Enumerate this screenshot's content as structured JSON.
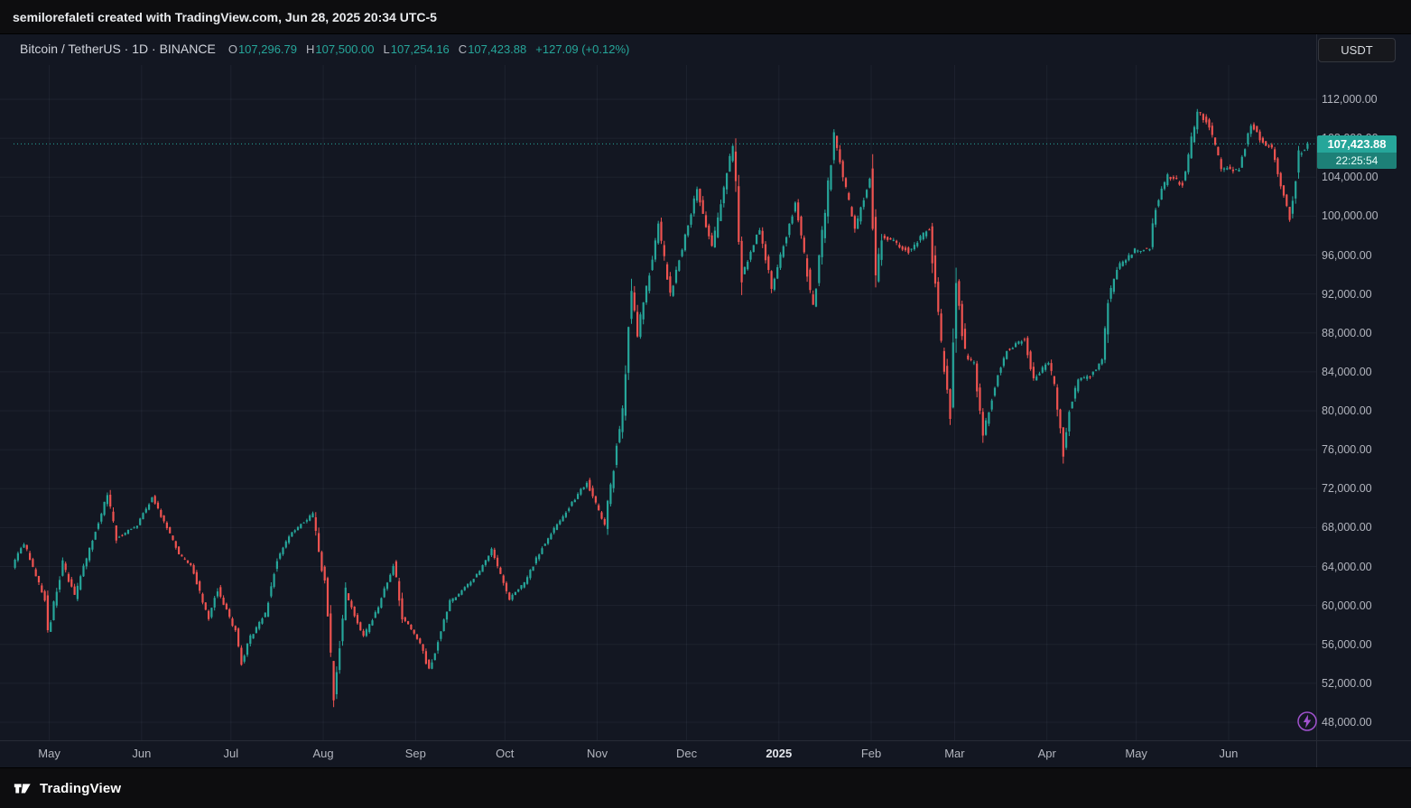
{
  "attribution": {
    "text": "semilorefaleti created with TradingView.com, Jun 28, 2025 20:34 UTC-5"
  },
  "symbol_bar": {
    "title": "Bitcoin / TetherUS · 1D · BINANCE",
    "ohlc": {
      "o_label": "O",
      "o": "107,296.79",
      "h_label": "H",
      "h": "107,500.00",
      "l_label": "L",
      "l": "107,254.16",
      "c_label": "C",
      "c": "107,423.88",
      "change": "+127.09 (+0.12%)"
    },
    "currency_button": "USDT"
  },
  "price_label": {
    "price": "107,423.88",
    "countdown": "22:25:54"
  },
  "footer": {
    "brand": "TradingView"
  },
  "colors": {
    "up": "#26a69a",
    "down": "#ef5350",
    "price_label_bg": "#26a69a",
    "pane_bg": "#131722"
  },
  "chart_data": {
    "type": "candlestick",
    "title": "Bitcoin / TetherUS, 1D, BINANCE",
    "ylabel": "Price (USDT)",
    "grid": true,
    "legend": "none",
    "up_color": "#26a69a",
    "down_color": "#ef5350",
    "x_range": [
      "2024-04-19",
      "2025-06-28"
    ],
    "ylim": [
      46000,
      114000
    ],
    "y_ticks": [
      {
        "value": 48000,
        "label": "48,000.00"
      },
      {
        "value": 52000,
        "label": "52,000.00"
      },
      {
        "value": 56000,
        "label": "56,000.00"
      },
      {
        "value": 60000,
        "label": "60,000.00"
      },
      {
        "value": 64000,
        "label": "64,000.00"
      },
      {
        "value": 68000,
        "label": "68,000.00"
      },
      {
        "value": 72000,
        "label": "72,000.00"
      },
      {
        "value": 76000,
        "label": "76,000.00"
      },
      {
        "value": 80000,
        "label": "80,000.00"
      },
      {
        "value": 84000,
        "label": "84,000.00"
      },
      {
        "value": 88000,
        "label": "88,000.00"
      },
      {
        "value": 92000,
        "label": "92,000.00"
      },
      {
        "value": 96000,
        "label": "96,000.00"
      },
      {
        "value": 100000,
        "label": "100,000.00"
      },
      {
        "value": 104000,
        "label": "104,000.00"
      },
      {
        "value": 108000,
        "label": "108,000.00"
      },
      {
        "value": 112000,
        "label": "112,000.00"
      }
    ],
    "x_ticks": [
      {
        "label": "May",
        "date": "2024-05-01"
      },
      {
        "label": "Jun",
        "date": "2024-06-01"
      },
      {
        "label": "Jul",
        "date": "2024-07-01"
      },
      {
        "label": "Aug",
        "date": "2024-08-01"
      },
      {
        "label": "Sep",
        "date": "2024-09-01"
      },
      {
        "label": "Oct",
        "date": "2024-10-01"
      },
      {
        "label": "Nov",
        "date": "2024-11-01"
      },
      {
        "label": "Dec",
        "date": "2024-12-01"
      },
      {
        "label": "2025",
        "date": "2025-01-01",
        "year": true
      },
      {
        "label": "Feb",
        "date": "2025-02-01"
      },
      {
        "label": "Mar",
        "date": "2025-03-01"
      },
      {
        "label": "Apr",
        "date": "2025-04-01"
      },
      {
        "label": "May",
        "date": "2025-05-01"
      },
      {
        "label": "Jun",
        "date": "2025-06-01"
      }
    ],
    "last_candle": {
      "open": 107296.79,
      "high": 107500.0,
      "low": 107254.16,
      "close": 107423.88,
      "change": 127.09,
      "change_pct": 0.12
    },
    "price_path": [
      [
        "2024-04-19",
        64000
      ],
      [
        "2024-04-23",
        66400
      ],
      [
        "2024-04-30",
        60600
      ],
      [
        "2024-05-01",
        57200
      ],
      [
        "2024-05-06",
        64300
      ],
      [
        "2024-05-10",
        60900
      ],
      [
        "2024-05-15",
        65800
      ],
      [
        "2024-05-21",
        71400
      ],
      [
        "2024-05-24",
        66900
      ],
      [
        "2024-05-31",
        68300
      ],
      [
        "2024-06-05",
        71100
      ],
      [
        "2024-06-11",
        67300
      ],
      [
        "2024-06-14",
        65200
      ],
      [
        "2024-06-18",
        64100
      ],
      [
        "2024-06-24",
        58700
      ],
      [
        "2024-06-27",
        61700
      ],
      [
        "2024-07-03",
        57300
      ],
      [
        "2024-07-05",
        54200
      ],
      [
        "2024-07-08",
        56700
      ],
      [
        "2024-07-13",
        59200
      ],
      [
        "2024-07-17",
        64800
      ],
      [
        "2024-07-22",
        67500
      ],
      [
        "2024-07-29",
        69400
      ],
      [
        "2024-08-02",
        62100
      ],
      [
        "2024-08-05",
        50500
      ],
      [
        "2024-08-09",
        61200
      ],
      [
        "2024-08-15",
        56800
      ],
      [
        "2024-08-20",
        59800
      ],
      [
        "2024-08-25",
        64200
      ],
      [
        "2024-08-28",
        58900
      ],
      [
        "2024-09-03",
        56100
      ],
      [
        "2024-09-06",
        53300
      ],
      [
        "2024-09-13",
        60400
      ],
      [
        "2024-09-18",
        61800
      ],
      [
        "2024-09-23",
        63500
      ],
      [
        "2024-09-27",
        65800
      ],
      [
        "2024-10-03",
        60700
      ],
      [
        "2024-10-08",
        62300
      ],
      [
        "2024-10-14",
        66000
      ],
      [
        "2024-10-21",
        69200
      ],
      [
        "2024-10-29",
        72700
      ],
      [
        "2024-11-04",
        68200
      ],
      [
        "2024-11-10",
        80400
      ],
      [
        "2024-11-13",
        92500
      ],
      [
        "2024-11-15",
        88000
      ],
      [
        "2024-11-22",
        99000
      ],
      [
        "2024-11-26",
        91900
      ],
      [
        "2024-12-05",
        102900
      ],
      [
        "2024-12-10",
        96600
      ],
      [
        "2024-12-17",
        107500
      ],
      [
        "2024-12-20",
        93900
      ],
      [
        "2024-12-26",
        98700
      ],
      [
        "2024-12-30",
        92600
      ],
      [
        "2025-01-07",
        101300
      ],
      [
        "2025-01-13",
        90600
      ],
      [
        "2025-01-20",
        108100
      ],
      [
        "2025-01-27",
        98600
      ],
      [
        "2025-02-01",
        103800
      ],
      [
        "2025-02-03",
        93200
      ],
      [
        "2025-02-05",
        98100
      ],
      [
        "2025-02-14",
        96400
      ],
      [
        "2025-02-21",
        98800
      ],
      [
        "2025-02-25",
        86500
      ],
      [
        "2025-02-28",
        79500
      ],
      [
        "2025-03-02",
        93200
      ],
      [
        "2025-03-05",
        85700
      ],
      [
        "2025-03-08",
        84800
      ],
      [
        "2025-03-11",
        77700
      ],
      [
        "2025-03-16",
        83700
      ],
      [
        "2025-03-19",
        86200
      ],
      [
        "2025-03-25",
        87400
      ],
      [
        "2025-03-28",
        83100
      ],
      [
        "2025-04-02",
        85100
      ],
      [
        "2025-04-04",
        82400
      ],
      [
        "2025-04-07",
        75800
      ],
      [
        "2025-04-09",
        80200
      ],
      [
        "2025-04-12",
        83100
      ],
      [
        "2025-04-16",
        83600
      ],
      [
        "2025-04-20",
        85100
      ],
      [
        "2025-04-22",
        91200
      ],
      [
        "2025-04-25",
        94700
      ],
      [
        "2025-05-01",
        96500
      ],
      [
        "2025-05-06",
        96700
      ],
      [
        "2025-05-08",
        101100
      ],
      [
        "2025-05-12",
        104100
      ],
      [
        "2025-05-17",
        103300
      ],
      [
        "2025-05-22",
        110800
      ],
      [
        "2025-05-26",
        109300
      ],
      [
        "2025-05-30",
        104900
      ],
      [
        "2025-06-05",
        104800
      ],
      [
        "2025-06-09",
        109600
      ],
      [
        "2025-06-12",
        107900
      ],
      [
        "2025-06-16",
        106900
      ],
      [
        "2025-06-22",
        99800
      ],
      [
        "2025-06-25",
        106200
      ],
      [
        "2025-06-28",
        107423.88
      ]
    ]
  }
}
